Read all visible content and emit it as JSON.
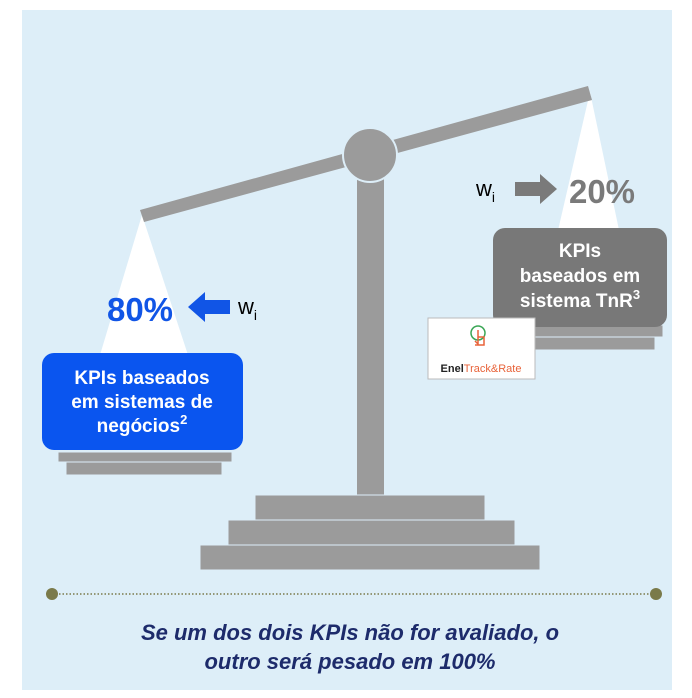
{
  "left": {
    "percent": "80%",
    "weight": "w",
    "weight_sub": "i",
    "label_lines": [
      "KPIs baseados",
      "em sistemas de",
      "negócios"
    ],
    "label_sup": "2"
  },
  "right": {
    "percent": "20%",
    "weight": "w",
    "weight_sub": "i",
    "label_lines": [
      "KPIs",
      "baseados em",
      "sistema TnR"
    ],
    "label_sup": "3"
  },
  "logo": {
    "brand": "Enel",
    "product": "Track&Rate"
  },
  "caption": [
    "Se um dos dois KPIs não for avaliado, o",
    "outro será pesado em 100%"
  ]
}
